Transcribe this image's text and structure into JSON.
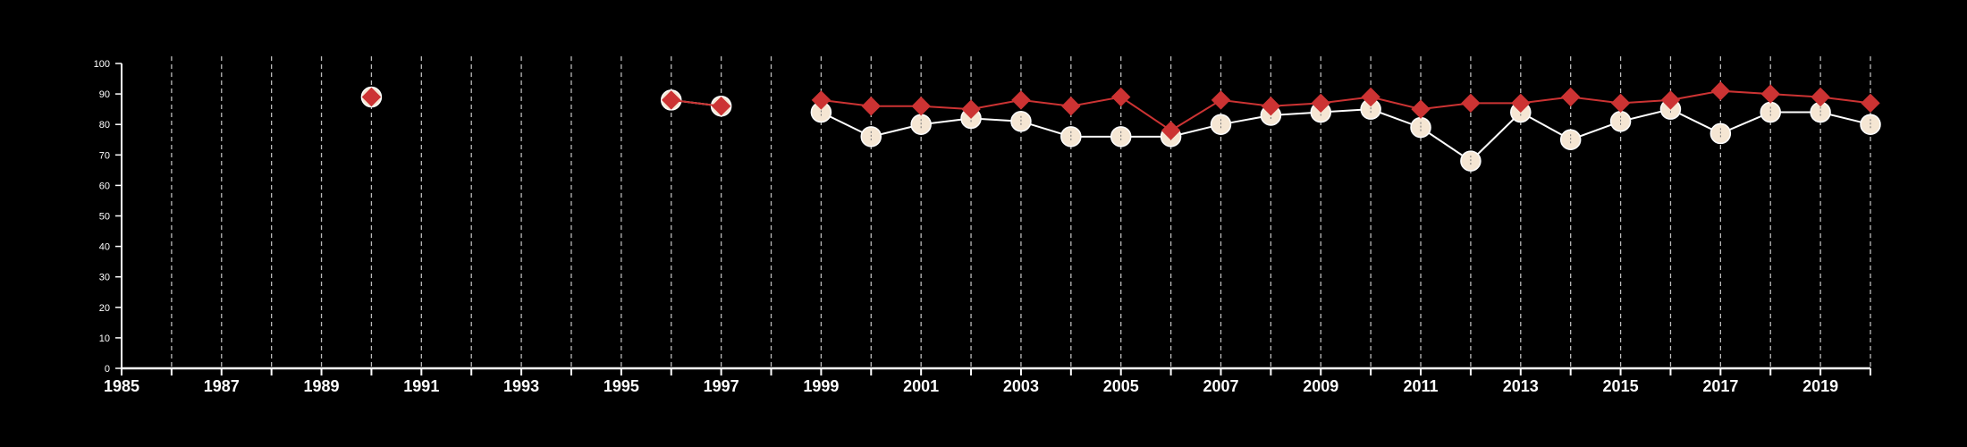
{
  "chart_data": {
    "type": "line",
    "xlim": [
      1985,
      2020
    ],
    "ylim": [
      0,
      100
    ],
    "x_ticks": [
      "1985",
      "1987",
      "1989",
      "1991",
      "1993",
      "1995",
      "1997",
      "1999",
      "2001",
      "2003",
      "2005",
      "2007",
      "2009",
      "2011",
      "2013",
      "2015",
      "2017",
      "2019"
    ],
    "y_ticks": [
      "0",
      "10",
      "20",
      "30",
      "40",
      "50",
      "60",
      "70",
      "80",
      "90",
      "100"
    ],
    "grid": "vertical dashed at each year",
    "legend": "none",
    "series": [
      {
        "marker": "circle",
        "color": "#f5e6d3",
        "points": [
          [
            1990,
            89
          ],
          [
            1996,
            88
          ],
          [
            1997,
            86
          ],
          [
            1999,
            84
          ],
          [
            2000,
            76
          ],
          [
            2001,
            80
          ],
          [
            2002,
            82
          ],
          [
            2003,
            81
          ],
          [
            2004,
            76
          ],
          [
            2005,
            76
          ],
          [
            2006,
            76
          ],
          [
            2007,
            80
          ],
          [
            2008,
            83
          ],
          [
            2009,
            84
          ],
          [
            2010,
            85
          ],
          [
            2011,
            79
          ],
          [
            2012,
            68
          ],
          [
            2013,
            84
          ],
          [
            2014,
            75
          ],
          [
            2015,
            81
          ],
          [
            2016,
            85
          ],
          [
            2017,
            77
          ],
          [
            2018,
            84
          ],
          [
            2019,
            84
          ],
          [
            2020,
            80
          ]
        ]
      },
      {
        "marker": "diamond",
        "color": "#cc3333",
        "points": [
          [
            1990,
            89
          ],
          [
            1996,
            88
          ],
          [
            1997,
            86
          ],
          [
            1999,
            88
          ],
          [
            2000,
            86
          ],
          [
            2001,
            86
          ],
          [
            2002,
            85
          ],
          [
            2003,
            88
          ],
          [
            2004,
            86
          ],
          [
            2005,
            89
          ],
          [
            2006,
            78
          ],
          [
            2007,
            88
          ],
          [
            2008,
            86
          ],
          [
            2009,
            87
          ],
          [
            2010,
            89
          ],
          [
            2011,
            85
          ],
          [
            2012,
            87
          ],
          [
            2013,
            87
          ],
          [
            2014,
            89
          ],
          [
            2015,
            87
          ],
          [
            2016,
            88
          ],
          [
            2017,
            91
          ],
          [
            2018,
            90
          ],
          [
            2019,
            89
          ],
          [
            2020,
            87
          ]
        ]
      }
    ]
  },
  "colors": {
    "background": "#000000",
    "axis": "#ffffff",
    "grid": "#bbbbbb"
  }
}
